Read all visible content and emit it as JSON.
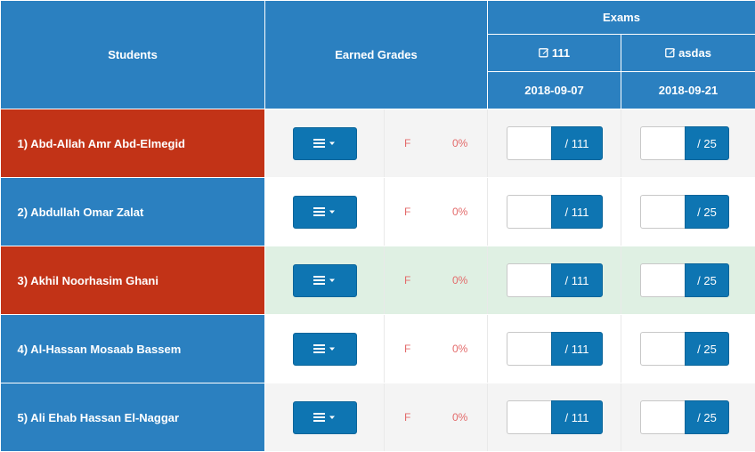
{
  "headers": {
    "students": "Students",
    "earned_grades": "Earned Grades",
    "exams": "Exams"
  },
  "exams": [
    {
      "icon": "edit-icon",
      "name": "111",
      "date": "2018-09-07",
      "max": "/ 111"
    },
    {
      "icon": "edit-icon",
      "name": "asdas",
      "date": "2018-09-21",
      "max": "/ 25"
    }
  ],
  "rows": [
    {
      "student": "1) Abd-Allah Amr Abd-Elmegid",
      "letter": "F",
      "percent": "0%",
      "score1": "",
      "score2": ""
    },
    {
      "student": "2) Abdullah Omar Zalat",
      "letter": "F",
      "percent": "0%",
      "score1": "",
      "score2": ""
    },
    {
      "student": "3) Akhil Noorhasim Ghani",
      "letter": "F",
      "percent": "0%",
      "score1": "",
      "score2": ""
    },
    {
      "student": "4) Al-Hassan Mosaab Bassem",
      "letter": "F",
      "percent": "0%",
      "score1": "",
      "score2": ""
    },
    {
      "student": "5) Ali Ehab Hassan El-Naggar",
      "letter": "F",
      "percent": "0%",
      "score1": "",
      "score2": ""
    }
  ],
  "colors": {
    "header_blue": "#2b80c0",
    "student_red": "#c23317",
    "button_blue": "#0e75b2",
    "fail_text": "#e36b6b",
    "highlight_green": "#dff0e3"
  }
}
